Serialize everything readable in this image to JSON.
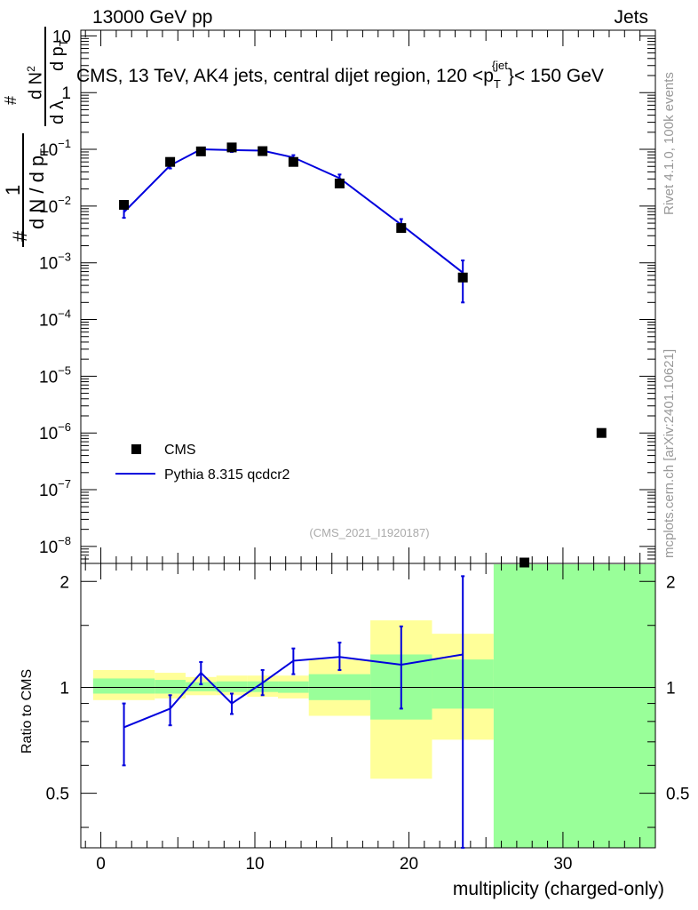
{
  "header": {
    "left": "13000 GeV pp",
    "right": "Jets"
  },
  "side_labels": {
    "rivet": "Rivet 4.1.0,  100k events",
    "mcplots": "mcplots.cern.ch [arXiv:2401.10621]"
  },
  "chart_data": [
    {
      "type": "line",
      "panel": "main",
      "title": "CMS, 13 TeV, AK4 jets, central dijet region, 120 <p_T^{jet}< 150 GeV",
      "title_text": "CMS, 13 TeV, AK4 jets, central dijet region, 120 <p",
      "title_sub": "T",
      "title_sup": "{jet",
      "title_tail": "}< 150 GeV",
      "ylabel": "1/(dN/dp_T) # d^2N/(dp_T dλ)",
      "ylabel_text": {
        "one": "1",
        "den": "d N / d p",
        "num": "d N",
        "hash": "#",
        "sub": "T",
        "two": "2",
        "lam": "d λ"
      },
      "xlim": [
        -1.3,
        36.0
      ],
      "ylim_log10": [
        -8.3,
        1.1
      ],
      "y_ticks": [
        {
          "exp": 1,
          "label": "10"
        },
        {
          "exp": 0,
          "label": "1"
        },
        {
          "exp": -1,
          "label": "10",
          "sup": "−1"
        },
        {
          "exp": -2,
          "label": "10",
          "sup": "−2"
        },
        {
          "exp": -3,
          "label": "10",
          "sup": "−3"
        },
        {
          "exp": -4,
          "label": "10",
          "sup": "−4"
        },
        {
          "exp": -5,
          "label": "10",
          "sup": "−5"
        },
        {
          "exp": -6,
          "label": "10",
          "sup": "−6"
        },
        {
          "exp": -7,
          "label": "10",
          "sup": "−7"
        },
        {
          "exp": -8,
          "label": "10",
          "sup": "−8"
        }
      ],
      "series": [
        {
          "name": "CMS",
          "color": "#000000",
          "style": "markers",
          "x": [
            1.5,
            4.5,
            6.5,
            8.5,
            10.5,
            12.5,
            15.5,
            19.5,
            23.5,
            27.5,
            32.5
          ],
          "y": [
            0.0105,
            0.06,
            0.092,
            0.108,
            0.093,
            0.06,
            0.025,
            0.0041,
            0.00055,
            5e-09,
            1e-06
          ]
        },
        {
          "name": "Pythia 8.315 qcdcr2",
          "color": "#0000dd",
          "style": "line",
          "x": [
            1.5,
            4.5,
            6.5,
            8.5,
            10.5,
            12.5,
            15.5,
            19.5,
            23.5
          ],
          "y": [
            0.0078,
            0.052,
            0.1,
            0.097,
            0.095,
            0.072,
            0.031,
            0.0047,
            0.00067
          ],
          "err_lo": [
            0.0062,
            0.046,
            0.095,
            0.09,
            0.088,
            0.065,
            0.026,
            0.0037,
            0.0002
          ],
          "err_hi": [
            0.0095,
            0.058,
            0.106,
            0.104,
            0.102,
            0.079,
            0.036,
            0.0059,
            0.0011
          ]
        }
      ],
      "legend": {
        "placement": "lower-left",
        "entries": [
          "CMS",
          "Pythia 8.315 qcdcr2"
        ]
      },
      "annotation": "(CMS_2021_I1920187)"
    },
    {
      "type": "line",
      "panel": "ratio",
      "ylabel": "Ratio to CMS",
      "xlabel": "multiplicity (charged-only)",
      "xlim": [
        -1.3,
        36.0
      ],
      "ylim": [
        0.35,
        2.25
      ],
      "x_ticks": [
        0,
        10,
        20,
        30
      ],
      "y_ticks": [
        0.5,
        1,
        2
      ],
      "reference": 1,
      "bands": [
        {
          "x0": -0.5,
          "x1": 3.5,
          "yel": [
            0.92,
            1.12
          ],
          "grn": [
            0.96,
            1.06
          ]
        },
        {
          "x0": 3.5,
          "x1": 5.5,
          "yel": [
            0.93,
            1.1
          ],
          "grn": [
            0.96,
            1.05
          ]
        },
        {
          "x0": 5.5,
          "x1": 7.5,
          "yel": [
            0.95,
            1.07
          ],
          "grn": [
            0.975,
            1.035
          ]
        },
        {
          "x0": 7.5,
          "x1": 9.5,
          "yel": [
            0.95,
            1.08
          ],
          "grn": [
            0.97,
            1.04
          ]
        },
        {
          "x0": 9.5,
          "x1": 11.5,
          "yel": [
            0.94,
            1.08
          ],
          "grn": [
            0.97,
            1.04
          ]
        },
        {
          "x0": 11.5,
          "x1": 13.5,
          "yel": [
            0.93,
            1.08
          ],
          "grn": [
            0.965,
            1.04
          ]
        },
        {
          "x0": 13.5,
          "x1": 17.5,
          "yel": [
            0.83,
            1.2
          ],
          "grn": [
            0.92,
            1.09
          ]
        },
        {
          "x0": 17.5,
          "x1": 21.5,
          "yel": [
            0.55,
            1.55
          ],
          "grn": [
            0.81,
            1.24
          ]
        },
        {
          "x0": 21.5,
          "x1": 25.5,
          "yel": [
            0.71,
            1.42
          ],
          "grn": [
            0.87,
            1.2
          ]
        },
        {
          "x0": 25.5,
          "x1": 36.0,
          "yel": null,
          "grn": [
            0.35,
            2.25
          ]
        }
      ],
      "series": [
        {
          "name": "Pythia 8.315 qcdcr2",
          "color": "#0000dd",
          "x": [
            1.5,
            4.5,
            6.5,
            8.5,
            10.5,
            12.5,
            15.5,
            19.5,
            23.5
          ],
          "y": [
            0.77,
            0.87,
            1.1,
            0.9,
            1.03,
            1.19,
            1.22,
            1.16,
            1.24
          ],
          "err_lo": [
            0.6,
            0.78,
            1.02,
            0.84,
            0.95,
            1.09,
            1.12,
            0.87,
            0.35
          ],
          "err_hi": [
            0.9,
            0.95,
            1.18,
            0.96,
            1.12,
            1.29,
            1.34,
            1.49,
            2.07
          ]
        }
      ]
    }
  ]
}
